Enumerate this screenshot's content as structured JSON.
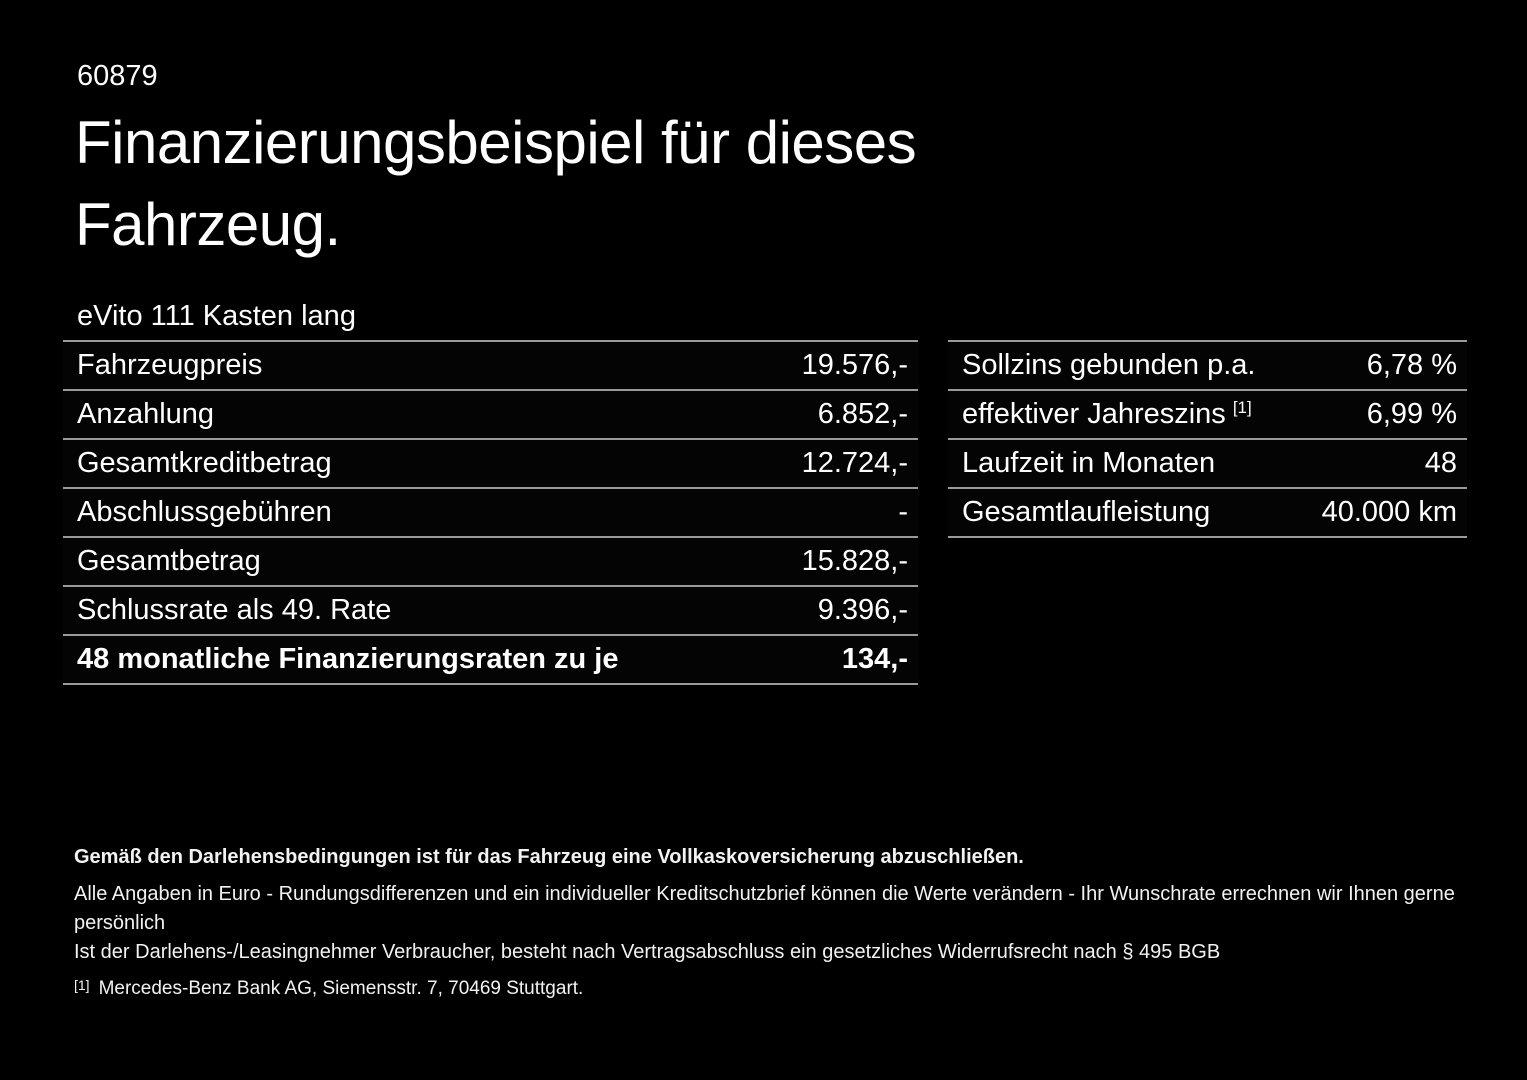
{
  "header": {
    "reference_number": "60879",
    "title_line1": "Finanzierungsbeispiel für dieses",
    "title_line2": "Fahrzeug.",
    "vehicle_model": "eVito 111 Kasten lang"
  },
  "finance_table": {
    "rows": [
      {
        "label": "Fahrzeugpreis",
        "value": "19.576,-"
      },
      {
        "label": "Anzahlung",
        "value": "6.852,-"
      },
      {
        "label": "Gesamtkreditbetrag",
        "value": "12.724,-"
      },
      {
        "label": "Abschlussgebühren",
        "value": "-"
      },
      {
        "label": "Gesamtbetrag",
        "value": "15.828,-"
      },
      {
        "label": "Schlussrate als 49. Rate",
        "value": "9.396,-"
      },
      {
        "label": "48 monatliche Finanzierungsraten zu je",
        "value": "134,-"
      }
    ]
  },
  "conditions_table": {
    "rows": [
      {
        "label": "Sollzins gebunden p.a.",
        "sup": "",
        "value": "6,78 %"
      },
      {
        "label": "effektiver Jahreszins",
        "sup": "[1]",
        "value": "6,99 %"
      },
      {
        "label": "Laufzeit in Monaten",
        "sup": "",
        "value": "48"
      },
      {
        "label": "Gesamtlaufleistung",
        "sup": "",
        "value": "40.000 km"
      }
    ]
  },
  "footer": {
    "insurance_note": "Gemäß den Darlehensbedingungen ist für das Fahrzeug eine Vollkaskoversicherung abzuschließen.",
    "disclaimer_line1": "Alle Angaben in Euro - Rundungsdifferenzen und ein individueller Kreditschutzbrief können die Werte verändern - Ihr Wunschrate errechnen wir Ihnen gerne persönlich",
    "disclaimer_line2": "Ist der Darlehens-/Leasingnehmer Verbraucher, besteht nach Vertragsabschluss ein gesetzliches Widerrufsrecht nach § 495 BGB",
    "footnote_marker": "[1]",
    "footnote_text": "Mercedes-Benz Bank AG, Siemensstr. 7, 70469 Stuttgart."
  },
  "colors": {
    "background": "#000000",
    "text": "#ffffff",
    "divider": "#9a9a9a"
  }
}
